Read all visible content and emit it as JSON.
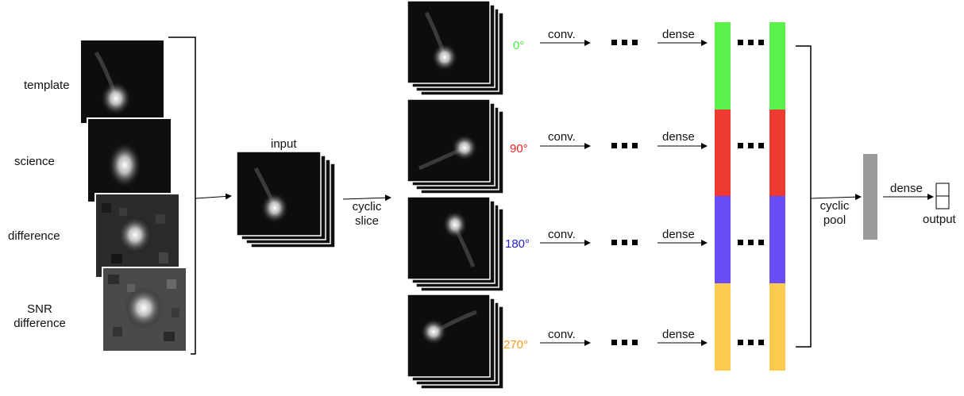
{
  "inputs": {
    "labels": [
      {
        "text": "template"
      },
      {
        "text": "science"
      },
      {
        "text": "difference"
      },
      {
        "text": "SNR"
      },
      {
        "text": "difference"
      }
    ]
  },
  "stack": {
    "label": "input"
  },
  "slice": {
    "line1": "cyclic",
    "line2": "slice"
  },
  "rotations": [
    {
      "label": "0°",
      "color": "#44ee44",
      "bar_color": "#5cf24c"
    },
    {
      "label": "90°",
      "color": "#ee2222",
      "bar_color": "#ef3a32"
    },
    {
      "label": "180°",
      "color": "#2222cc",
      "bar_color": "#6a4cf4"
    },
    {
      "label": "270°",
      "color": "#ff9a1a",
      "bar_color": "#fcca4c"
    }
  ],
  "ops": {
    "conv": "conv.",
    "dense": "dense"
  },
  "pool": {
    "line1": "cyclic",
    "line2": "pool",
    "bar_color": "#9a9a9a"
  },
  "final": {
    "dense": "dense",
    "output": "output"
  }
}
